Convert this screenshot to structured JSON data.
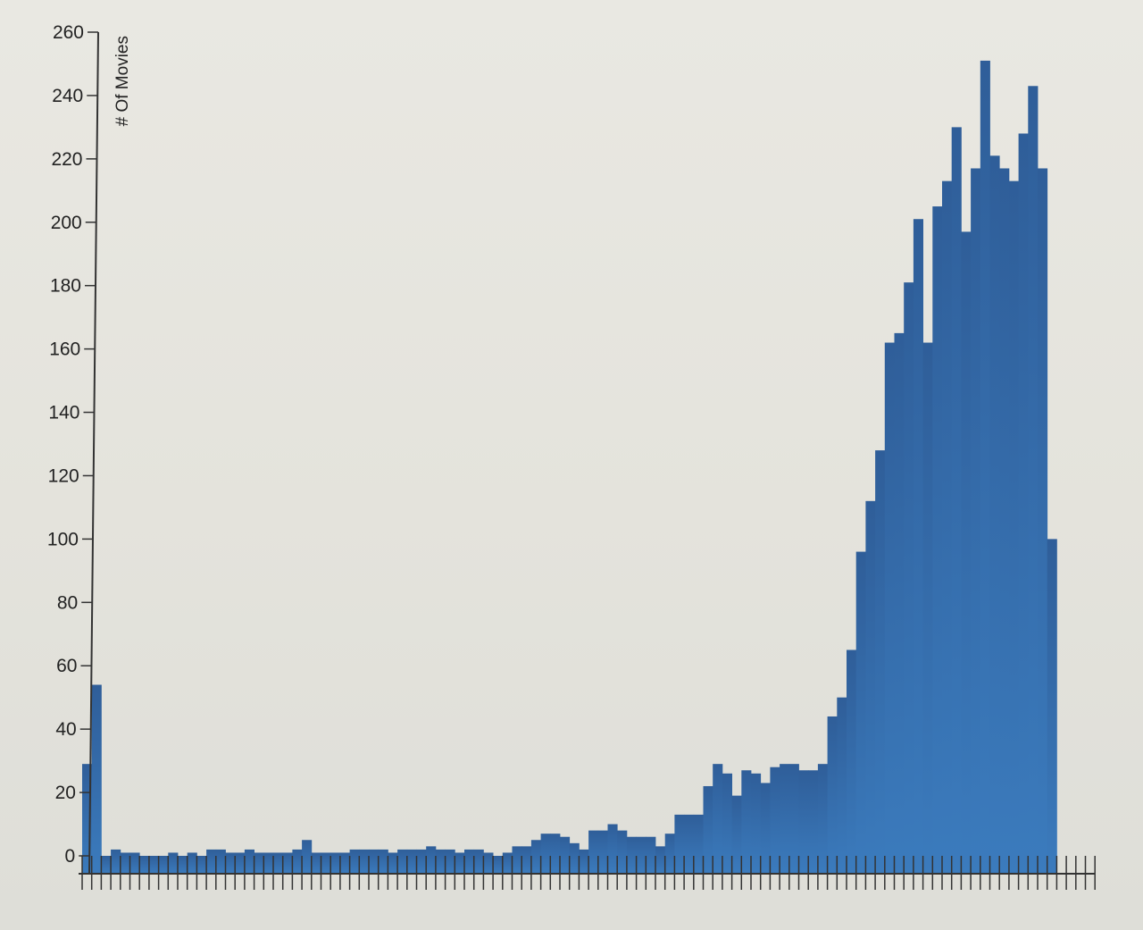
{
  "chart_data": {
    "type": "bar",
    "ylabel": "# Of Movies",
    "xlabel": "",
    "title": "",
    "ylim": [
      0,
      260
    ],
    "y_ticks": [
      0,
      20,
      40,
      60,
      80,
      100,
      120,
      140,
      160,
      180,
      200,
      220,
      240,
      260
    ],
    "x_tick_labels": "none",
    "grid": false,
    "bar_color": "#3b7bbd",
    "series": [
      {
        "values": [
          29,
          54,
          0,
          2,
          1,
          1,
          0,
          0,
          0,
          1,
          0,
          1,
          0,
          2,
          2,
          1,
          1,
          2,
          1,
          1,
          1,
          1,
          2,
          5,
          1,
          1,
          1,
          1,
          2,
          2,
          2,
          2,
          1,
          2,
          2,
          2,
          3,
          2,
          2,
          1,
          2,
          2,
          1,
          0,
          1,
          3,
          3,
          5,
          7,
          7,
          6,
          4,
          2,
          8,
          8,
          10,
          8,
          6,
          6,
          6,
          3,
          7,
          13,
          13,
          13,
          22,
          29,
          26,
          19,
          27,
          26,
          23,
          28,
          29,
          29,
          27,
          27,
          29,
          44,
          50,
          65,
          96,
          112,
          128,
          162,
          165,
          181,
          201,
          162,
          205,
          213,
          230,
          197,
          217,
          251,
          221,
          217,
          213,
          228,
          243,
          217,
          100
        ]
      }
    ]
  }
}
